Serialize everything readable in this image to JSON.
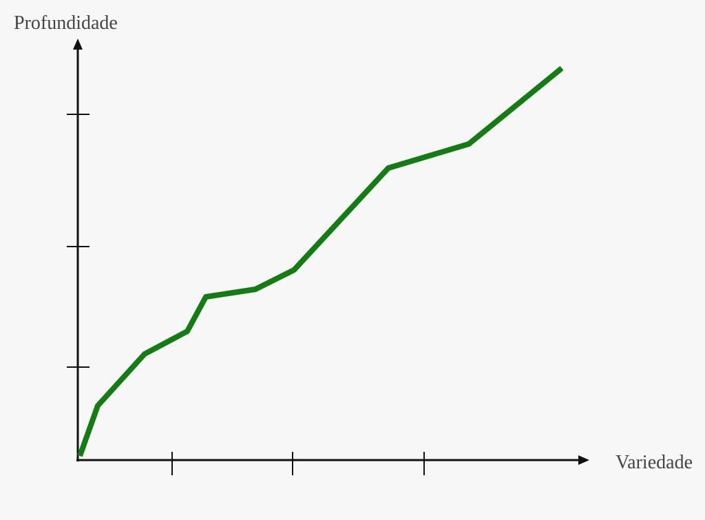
{
  "chart_data": {
    "type": "line",
    "x_label": "Variedade",
    "y_label": "Profundidade",
    "x": [
      4,
      30,
      98,
      160,
      187,
      259,
      315,
      452,
      569,
      704
    ],
    "values": [
      6,
      79,
      154,
      187,
      237,
      248,
      276,
      424,
      459,
      569
    ],
    "color": "#137c13",
    "xlim": [
      0,
      740
    ],
    "ylim": [
      0,
      610
    ],
    "xticks": [
      138,
      313,
      504
    ],
    "yticks": [
      135,
      310,
      502
    ]
  }
}
